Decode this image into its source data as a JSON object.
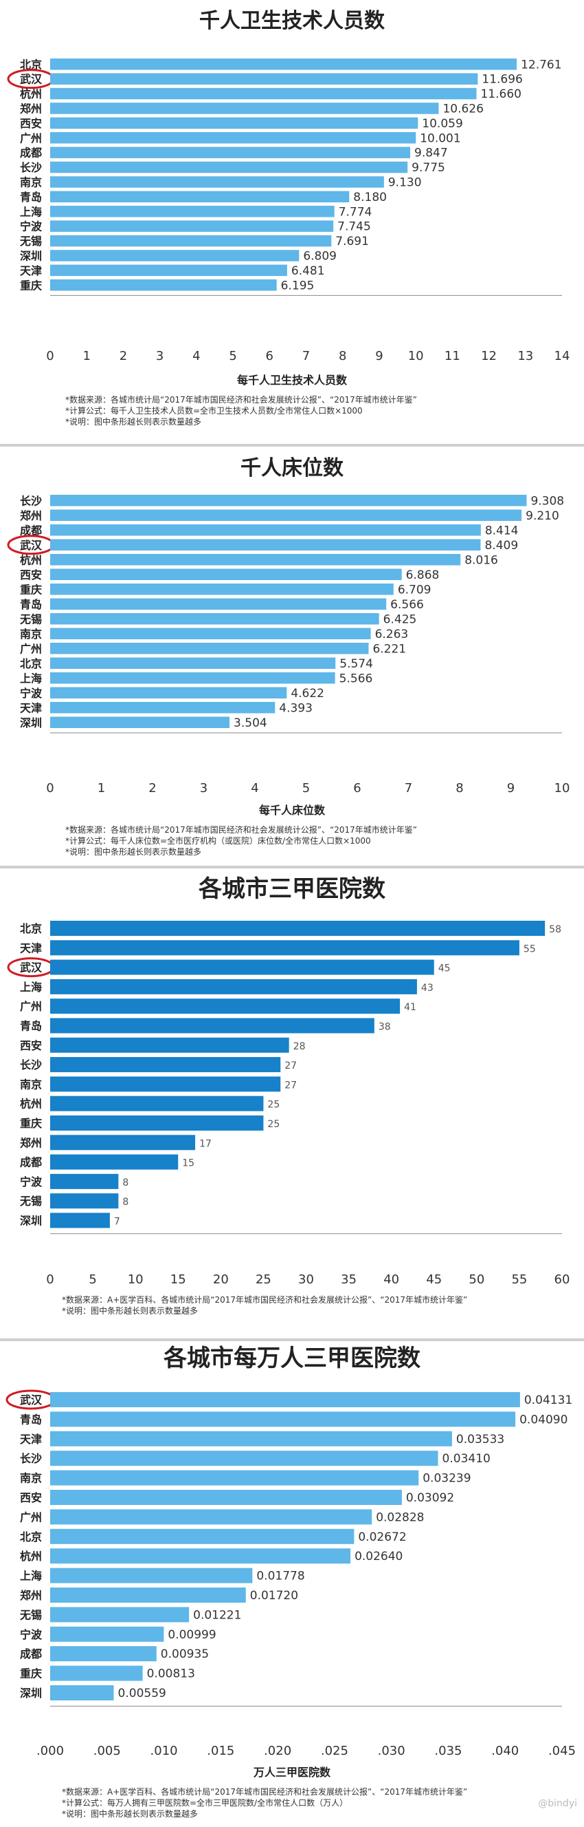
{
  "colors": {
    "bar_light": "#5fb6e8",
    "bar_dark": "#1781c9",
    "value_text": "#555555",
    "highlight_ellipse": "#d21a22",
    "divider": "#cfcfcf"
  },
  "watermark": "@bindyi",
  "chart_data": [
    {
      "type": "bar",
      "orientation": "horizontal",
      "title": "千人卫生技术人员数",
      "xlabel": "每千人卫生技术人员数",
      "ylabel": "",
      "xlim": [
        0,
        14
      ],
      "xticks": [
        "0",
        "1",
        "2",
        "3",
        "4",
        "5",
        "6",
        "7",
        "8",
        "9",
        "10",
        "11",
        "12",
        "13",
        "14"
      ],
      "highlight": "武汉",
      "categories": [
        "北京",
        "武汉",
        "杭州",
        "郑州",
        "西安",
        "广州",
        "成都",
        "长沙",
        "南京",
        "青岛",
        "上海",
        "宁波",
        "无锡",
        "深圳",
        "天津",
        "重庆"
      ],
      "values": [
        12.761,
        11.696,
        11.66,
        10.626,
        10.059,
        10.001,
        9.847,
        9.775,
        9.13,
        8.18,
        7.774,
        7.745,
        7.691,
        6.809,
        6.481,
        6.195
      ],
      "labels": [
        "12.761",
        "11.696",
        "11.660",
        "10.626",
        "10.059",
        "10.001",
        "9.847",
        "9.775",
        "9.130",
        "8.180",
        "7.774",
        "7.745",
        "7.691",
        "6.809",
        "6.481",
        "6.195"
      ],
      "notes": [
        "*数据来源：各城市统计局“2017年城市国民经济和社会发展统计公报”、“2017年城市统计年鉴”",
        "*计算公式：每千人卫生技术人员数=全市卫生技术人员数/全市常住人口数×1000",
        "*说明：图中条形越长则表示数量越多"
      ]
    },
    {
      "type": "bar",
      "orientation": "horizontal",
      "title": "千人床位数",
      "xlabel": "每千人床位数",
      "ylabel": "",
      "xlim": [
        0,
        10
      ],
      "xticks": [
        "0",
        "1",
        "2",
        "3",
        "4",
        "5",
        "6",
        "7",
        "8",
        "9",
        "10"
      ],
      "highlight": "武汉",
      "categories": [
        "长沙",
        "郑州",
        "成都",
        "武汉",
        "杭州",
        "西安",
        "重庆",
        "青岛",
        "无锡",
        "南京",
        "广州",
        "北京",
        "上海",
        "宁波",
        "天津",
        "深圳"
      ],
      "values": [
        9.308,
        9.21,
        8.414,
        8.409,
        8.016,
        6.868,
        6.709,
        6.566,
        6.425,
        6.263,
        6.221,
        5.574,
        5.566,
        4.622,
        4.393,
        3.504
      ],
      "labels": [
        "9.308",
        "9.210",
        "8.414",
        "8.409",
        "8.016",
        "6.868",
        "6.709",
        "6.566",
        "6.425",
        "6.263",
        "6.221",
        "5.574",
        "5.566",
        "4.622",
        "4.393",
        "3.504"
      ],
      "notes": [
        "*数据来源：各城市统计局“2017年城市国民经济和社会发展统计公报”、“2017年城市统计年鉴”",
        "*计算公式：每千人床位数=全市医疗机构（或医院）床位数/全市常住人口数×1000",
        "*说明：图中条形越长则表示数量越多"
      ]
    },
    {
      "type": "bar",
      "orientation": "horizontal",
      "title": "各城市三甲医院数",
      "xlabel": "",
      "ylabel": "",
      "xlim": [
        0,
        60
      ],
      "xticks": [
        "0",
        "5",
        "10",
        "15",
        "20",
        "25",
        "30",
        "35",
        "40",
        "45",
        "50",
        "55",
        "60"
      ],
      "highlight": "武汉",
      "categories": [
        "北京",
        "天津",
        "武汉",
        "上海",
        "广州",
        "青岛",
        "西安",
        "长沙",
        "南京",
        "杭州",
        "重庆",
        "郑州",
        "成都",
        "宁波",
        "无锡",
        "深圳"
      ],
      "values": [
        58,
        55,
        45,
        43,
        41,
        38,
        28,
        27,
        27,
        25,
        25,
        17,
        15,
        8,
        8,
        7
      ],
      "labels": [
        "58",
        "55",
        "45",
        "43",
        "41",
        "38",
        "28",
        "27",
        "27",
        "25",
        "25",
        "17",
        "15",
        "8",
        "8",
        "7"
      ],
      "notes": [
        "*数据来源：A+医学百科、各城市统计局“2017年城市国民经济和社会发展统计公报”、“2017年城市统计年鉴”",
        "*说明：图中条形越长则表示数量越多"
      ]
    },
    {
      "type": "bar",
      "orientation": "horizontal",
      "title": "各城市每万人三甲医院数",
      "xlabel": "万人三甲医院数",
      "ylabel": "",
      "xlim": [
        0,
        0.045
      ],
      "xticks": [
        ".000",
        ".005",
        ".010",
        ".015",
        ".020",
        ".025",
        ".030",
        ".035",
        ".040",
        ".045"
      ],
      "highlight": "武汉",
      "categories": [
        "武汉",
        "青岛",
        "天津",
        "长沙",
        "南京",
        "西安",
        "广州",
        "北京",
        "杭州",
        "上海",
        "郑州",
        "无锡",
        "宁波",
        "成都",
        "重庆",
        "深圳"
      ],
      "values": [
        0.04131,
        0.0409,
        0.03533,
        0.0341,
        0.03239,
        0.03092,
        0.02828,
        0.02672,
        0.0264,
        0.01778,
        0.0172,
        0.01221,
        0.00999,
        0.00935,
        0.00813,
        0.00559
      ],
      "labels": [
        "0.04131",
        "0.04090",
        "0.03533",
        "0.03410",
        "0.03239",
        "0.03092",
        "0.02828",
        "0.02672",
        "0.02640",
        "0.01778",
        "0.01720",
        "0.01221",
        "0.00999",
        "0.00935",
        "0.00813",
        "0.00559"
      ],
      "notes": [
        "*数据来源：A+医学百科、各城市统计局“2017年城市国民经济和社会发展统计公报”、“2017年城市统计年鉴”",
        "*计算公式：每万人拥有三甲医院数=全市三甲医院数/全市常住人口数（万人）",
        "*说明：图中条形越长则表示数量越多"
      ]
    }
  ]
}
